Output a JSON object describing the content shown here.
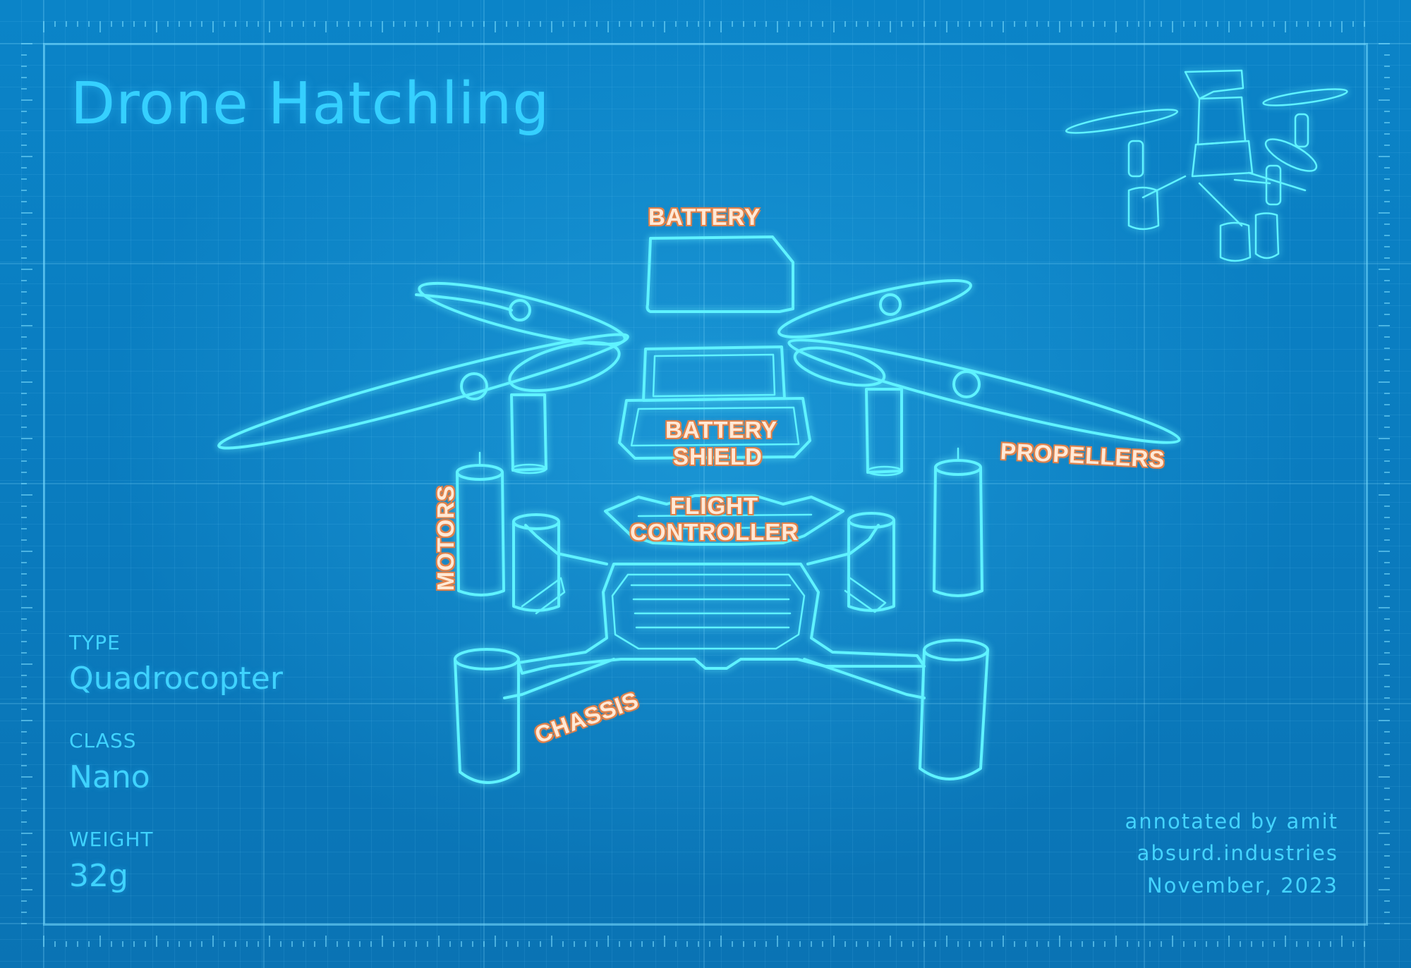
{
  "title": "Drone Hatchling",
  "specs": [
    {
      "label": "TYPE",
      "value": "Quadrocopter"
    },
    {
      "label": "CLASS",
      "value": "Nano"
    },
    {
      "label": "WEIGHT",
      "value": "32g"
    }
  ],
  "credits": [
    "annotated by amit",
    "absurd.industries",
    "November, 2023"
  ],
  "callouts": {
    "battery": "BATTERY",
    "battery_shield_1": "BATTERY",
    "battery_shield_2": "SHIELD",
    "propellers": "PROPELLERS",
    "motors": "MOTORS",
    "flight_controller_1": "FLIGHT",
    "flight_controller_2": "CONTROLLER",
    "chassis": "CHASSIS"
  },
  "colors": {
    "background": "#0a7cc0",
    "line": "#5ff3ff",
    "text": "#3fd3ff",
    "callout_fill": "#ffe9d6",
    "callout_outline": "#e0814a"
  }
}
